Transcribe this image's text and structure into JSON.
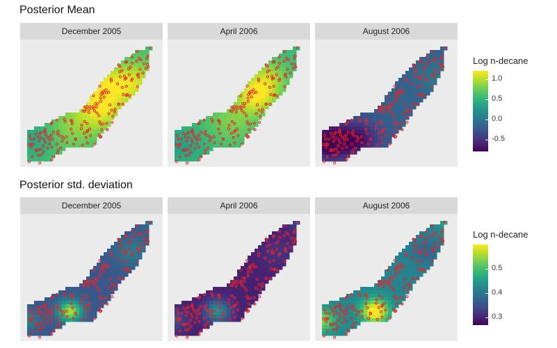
{
  "chart_data": [
    {
      "type": "heatmap",
      "title": "Posterior Mean",
      "panels": [
        {
          "label": "December 2005",
          "field": {
            "base": 0.6,
            "blobs": [
              [
                0.55,
                0.55,
                0.55,
                0.12
              ],
              [
                0.8,
                0.35,
                0.45,
                0.12
              ],
              [
                0.6,
                0.35,
                0.35,
                0.1
              ],
              [
                0.35,
                0.72,
                0.2,
                0.12
              ],
              [
                0.1,
                0.8,
                -0.2,
                0.1
              ]
            ]
          }
        },
        {
          "label": "April 2006",
          "field": {
            "base": 0.55,
            "blobs": [
              [
                0.62,
                0.45,
                0.6,
                0.1
              ],
              [
                0.7,
                0.3,
                0.35,
                0.1
              ],
              [
                0.45,
                0.65,
                0.25,
                0.12
              ],
              [
                0.1,
                0.85,
                -0.2,
                0.1
              ]
            ]
          }
        },
        {
          "label": "August 2006",
          "field": {
            "base": -0.2,
            "blobs": [
              [
                0.85,
                0.3,
                0.2,
                0.1
              ],
              [
                0.1,
                0.82,
                -0.7,
                0.1
              ],
              [
                0.3,
                0.8,
                -0.5,
                0.1
              ],
              [
                0.6,
                0.5,
                0.05,
                0.1
              ]
            ]
          }
        }
      ],
      "legend": {
        "title": "Log n-decane",
        "ticks": [
          1.0,
          0.5,
          0.0,
          -0.5
        ],
        "tick_labels": [
          "1.0",
          "0.5",
          "0.0",
          "-0.5"
        ],
        "range": [
          -0.8,
          1.2
        ]
      }
    },
    {
      "type": "heatmap",
      "title": "Posterior std. deviation",
      "panels": [
        {
          "label": "December 2005",
          "field": {
            "base": 0.36,
            "blobs": [
              [
                0.35,
                0.78,
                0.2,
                0.06
              ],
              [
                0.78,
                0.3,
                0.05,
                0.08
              ],
              [
                0.05,
                0.85,
                0.06,
                0.06
              ],
              [
                0.95,
                0.05,
                0.06,
                0.06
              ]
            ]
          }
        },
        {
          "label": "April 2006",
          "field": {
            "base": 0.3,
            "blobs": [
              [
                0.35,
                0.78,
                0.14,
                0.06
              ],
              [
                0.78,
                0.3,
                0.02,
                0.08
              ],
              [
                0.05,
                0.85,
                0.05,
                0.06
              ],
              [
                0.95,
                0.05,
                0.06,
                0.06
              ]
            ]
          }
        },
        {
          "label": "August 2006",
          "field": {
            "base": 0.42,
            "blobs": [
              [
                0.42,
                0.78,
                0.2,
                0.07
              ],
              [
                0.05,
                0.85,
                0.12,
                0.07
              ],
              [
                0.95,
                0.05,
                0.06,
                0.06
              ],
              [
                0.78,
                0.3,
                -0.04,
                0.08
              ]
            ]
          }
        }
      ],
      "legend": {
        "title": "Log n-decane",
        "ticks": [
          0.5,
          0.4,
          0.3
        ],
        "tick_labels": [
          "0.5",
          "0.4",
          "0.3"
        ],
        "range": [
          0.27,
          0.6
        ]
      }
    }
  ],
  "colors": {
    "points": "#e8232a",
    "panel_bg": "#ebebeb",
    "strip_bg": "#d9d9d9",
    "palette": "viridis"
  }
}
